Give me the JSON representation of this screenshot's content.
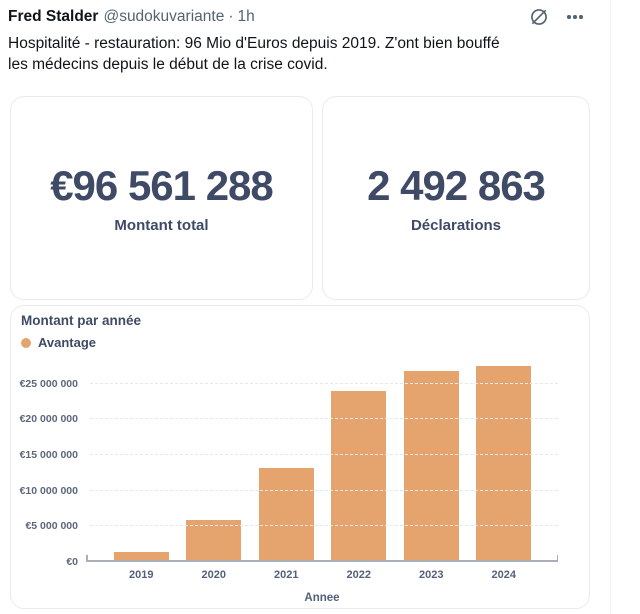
{
  "tweet": {
    "author": "Fred Stalder",
    "handle": "@sudokuvariante",
    "separator": "·",
    "time": "1h",
    "text_lines": [
      "Hospitalité - restauration:  96 Mio d'Euros depuis 2019. Z'ont bien bouffé",
      "les médecins depuis le début de la crise covid."
    ]
  },
  "icons": {
    "grok": "grok-slashed-circle-icon",
    "more": "more-ellipsis-icon"
  },
  "stats": {
    "cards": [
      {
        "value": "€96 561 288",
        "label": "Montant total"
      },
      {
        "value": "2 492 863",
        "label": "Déclarations"
      }
    ]
  },
  "chart_data": {
    "type": "bar",
    "title": "Montant par année",
    "legend": [
      {
        "label": "Avantage",
        "color": "#e5a46e"
      }
    ],
    "legend_position": "top-left",
    "categories": [
      "2019",
      "2020",
      "2021",
      "2022",
      "2023",
      "2024"
    ],
    "values": [
      1100000,
      5600000,
      12900000,
      23700000,
      26500000,
      27200000
    ],
    "xlabel": "Annee",
    "ylabel": "",
    "ylim": [
      0,
      27500000
    ],
    "yticks": [
      {
        "value": 0,
        "label": "€0"
      },
      {
        "value": 5000000,
        "label": "€5 000 000"
      },
      {
        "value": 10000000,
        "label": "€10 000 000"
      },
      {
        "value": 15000000,
        "label": "€15 000 000"
      },
      {
        "value": 20000000,
        "label": "€20 000 000"
      },
      {
        "value": 25000000,
        "label": "€25 000 000"
      }
    ],
    "grid": "horizontal-dashed",
    "bar_color": "#e5a46e",
    "axis_color": "#a9aeb8"
  }
}
